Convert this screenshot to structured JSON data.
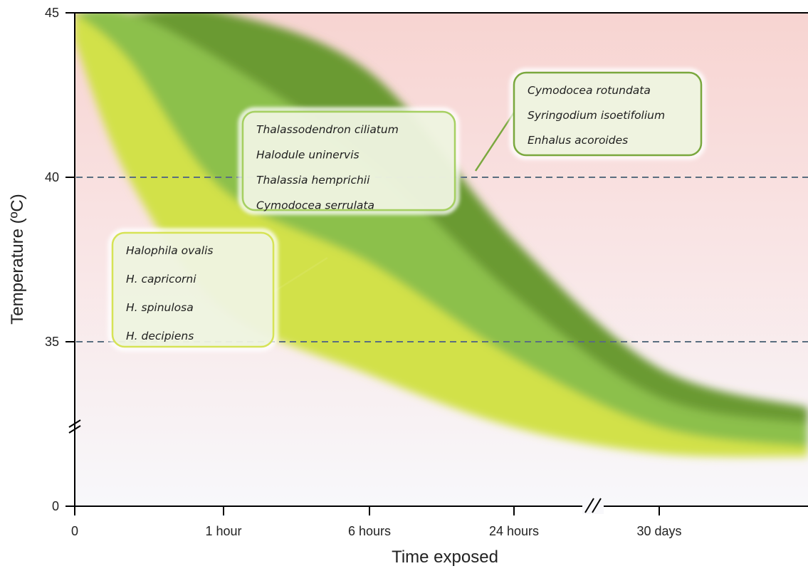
{
  "chart_data": {
    "type": "area",
    "xlabel": "Time exposed",
    "ylabel": "Temperature (ºC)",
    "x_tick_labels": [
      "0",
      "1 hour",
      "6 hours",
      "24 hours",
      "30 days"
    ],
    "y_tick_labels": [
      "0",
      "35",
      "40",
      "45"
    ],
    "y_axis_break": true,
    "x_axis_break": true,
    "ylim": [
      0,
      45
    ],
    "reference_lines": [
      35,
      40
    ],
    "series": [
      {
        "species": [
          "Halophila ovalis",
          "H. capricorni",
          "H. spinulosa",
          "H. decipiens"
        ],
        "color": "#d2e14a",
        "upper_temperature": [
          45,
          43.6,
          39.6,
          37.4,
          34.5,
          32.4,
          31.8
        ],
        "lower_temperature": [
          44.2,
          40.0,
          36.0,
          34.0,
          32.4,
          31.6,
          31.5
        ]
      },
      {
        "species": [
          "Thalassodendron ciliatum",
          "Halodule uninervis",
          "Thalassia hemprichii",
          "Cymodocea serrulata"
        ],
        "color": "#8cc04c",
        "upper_temperature": [
          45,
          45,
          43.5,
          40.5,
          36.4,
          33.3,
          32.5
        ],
        "lower_temperature": [
          45,
          43.6,
          39.6,
          37.4,
          34.5,
          32.4,
          31.8
        ]
      },
      {
        "species": [
          "Cymodocea rotundata",
          "Syringodium isoetifolium",
          "Enhalus acoroides"
        ],
        "color": "#6a9a33",
        "upper_temperature": [
          45,
          45,
          45,
          43.2,
          38.1,
          34.2,
          33.0
        ],
        "lower_temperature": [
          45,
          45,
          43.5,
          40.5,
          36.4,
          33.3,
          32.5
        ]
      }
    ],
    "grid": false
  },
  "colors": {
    "background_top": "#f7d4d1",
    "background_bottom": "#f8f8fb",
    "reference_line": "#5a6e80",
    "axis": "#000000"
  }
}
